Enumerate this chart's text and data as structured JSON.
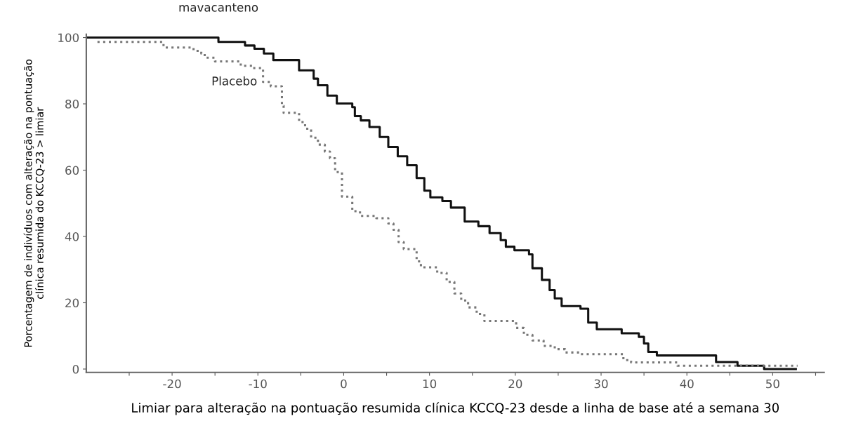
{
  "chart_data": {
    "type": "step",
    "xlabel": "Limiar para alteração na pontuação resumida clínica KCCQ-23 desde a linha de base até a semana 30",
    "ylabel": "Porcentagem de indivíduos com alteração na pontuação\nclínica resumida do KCCQ-23 > limiar",
    "xlim": [
      -30,
      56
    ],
    "ylim": [
      -1,
      101
    ],
    "xticks": [
      {
        "value": -25,
        "label": null
      },
      -20,
      {
        "value": -15,
        "label": null
      },
      -10,
      {
        "value": -5,
        "label": null
      },
      0,
      {
        "value": 5,
        "label": null
      },
      10,
      {
        "value": 15,
        "label": null
      },
      20,
      {
        "value": 25,
        "label": null
      },
      30,
      {
        "value": 35,
        "label": null
      },
      40,
      {
        "value": 45,
        "label": null
      },
      50,
      {
        "value": 55,
        "label": null
      }
    ],
    "yticks": [
      0,
      20,
      40,
      60,
      80,
      100
    ],
    "grid": false,
    "legend": false,
    "series": [
      {
        "name": "mavacanteno",
        "color": "#111111",
        "line_style": "solid",
        "x": [
          -30,
          -14.6,
          -11.5,
          -10.4,
          -9.3,
          -8.2,
          -5.2,
          -3.5,
          -3,
          -1.9,
          -0.8,
          1,
          1.3,
          2,
          3,
          4.2,
          5.2,
          6.3,
          7.4,
          8.5,
          9.4,
          10.1,
          11.5,
          12.5,
          14.1,
          15.7,
          17,
          18.3,
          18.9,
          19.9,
          21.6,
          22,
          23.1,
          24,
          24.6,
          25.4,
          27.6,
          28.5,
          29.5,
          32.4,
          34.4,
          35,
          35.5,
          36.5,
          43.4,
          45.9,
          49,
          52.7
        ],
        "values": [
          100,
          98.7,
          97.6,
          96.6,
          95.2,
          93.2,
          90.1,
          87.6,
          85.6,
          82.5,
          80.1,
          79,
          76.3,
          75,
          73,
          70,
          67,
          64.2,
          61.5,
          57.6,
          53.8,
          51.8,
          50.7,
          48.7,
          44.5,
          43.1,
          41,
          38.9,
          36.9,
          35.8,
          34.6,
          30.4,
          26.9,
          23.8,
          21.3,
          19,
          18.2,
          14,
          12,
          10.8,
          9.7,
          7.7,
          5.2,
          4.1,
          2.1,
          1,
          0,
          0
        ]
      },
      {
        "name": "Placebo",
        "color": "#777777",
        "line_style": "dotted",
        "x": [
          -28.7,
          -21,
          -17.5,
          -16.6,
          -16.2,
          -15,
          -12,
          -10.6,
          -9.4,
          -8.5,
          -7.2,
          -7,
          -5.2,
          -4.5,
          -3.8,
          -3,
          -2.2,
          -1.6,
          -1,
          -0.2,
          1,
          1.9,
          3.8,
          5.2,
          5.8,
          6.4,
          7,
          8.5,
          9,
          10.9,
          12,
          12.9,
          13.7,
          14.5,
          15.5,
          16.4,
          20.1,
          21,
          22,
          23.3,
          24.6,
          25.8,
          27.5,
          32.6,
          33.5,
          38.9,
          52.9
        ],
        "values": [
          98.7,
          97,
          96,
          95.2,
          93.9,
          92.8,
          91.5,
          90.8,
          86.6,
          85.3,
          79.4,
          77.3,
          74.5,
          72.5,
          69.8,
          67.7,
          65.6,
          63.6,
          59.4,
          52,
          47.6,
          46.2,
          45.5,
          43.9,
          42,
          38.3,
          36.2,
          32.5,
          30.7,
          29,
          26.3,
          22.8,
          20.7,
          18.6,
          16.6,
          14.5,
          12.4,
          10.3,
          8.6,
          7,
          6,
          5,
          4.5,
          2.7,
          2,
          1,
          1
        ]
      }
    ]
  }
}
